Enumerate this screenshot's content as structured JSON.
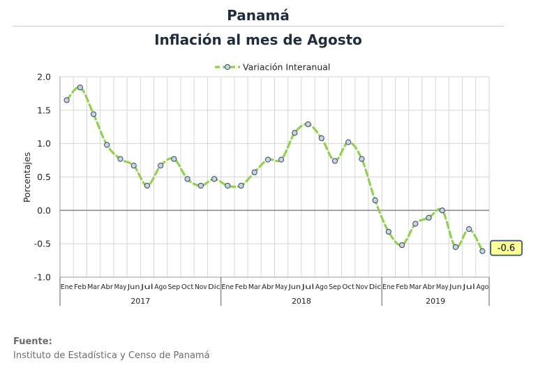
{
  "header": {
    "country": "Panamá",
    "title": "Inflación al mes de Agosto"
  },
  "chart_data": {
    "type": "line",
    "ylabel": "Porcentajes",
    "ylim": [
      -1.0,
      2.0
    ],
    "yticks": [
      "2.0",
      "1.5",
      "1.0",
      "0.5",
      "0.0",
      "-0.5",
      "-1.0"
    ],
    "ytick_values": [
      2.0,
      1.5,
      1.0,
      0.5,
      0.0,
      -0.5,
      -1.0
    ],
    "grid": true,
    "legend_position": "top-center",
    "series": [
      {
        "name": "Variación Interanual",
        "color": "#92d050",
        "marker_fill": "#c5d3e2",
        "values": [
          1.65,
          1.84,
          1.44,
          0.98,
          0.77,
          0.67,
          0.37,
          0.67,
          0.77,
          0.47,
          0.37,
          0.47,
          0.37,
          0.37,
          0.57,
          0.76,
          0.76,
          1.16,
          1.29,
          1.08,
          0.74,
          1.02,
          0.77,
          0.15,
          -0.32,
          -0.52,
          -0.2,
          -0.11,
          0.0,
          -0.55,
          -0.28,
          -0.61
        ]
      }
    ],
    "months": [
      "Ene",
      "Feb",
      "Mar",
      "Abr",
      "May",
      "Jun",
      "Jul",
      "Ago",
      "Sep",
      "Oct",
      "Nov",
      "Dic",
      "Ene",
      "Feb",
      "Mar",
      "Abr",
      "May",
      "Jun",
      "Jul",
      "Ago",
      "Sep",
      "Oct",
      "Nov",
      "Dic",
      "Ene",
      "Feb",
      "Mar",
      "Abr",
      "May",
      "Jun",
      "Jul",
      "Ago"
    ],
    "years": [
      {
        "label": "2017",
        "count": 12
      },
      {
        "label": "2018",
        "count": 12
      },
      {
        "label": "2019",
        "count": 8
      }
    ],
    "annotation": {
      "label": "-0.6",
      "value": -0.61,
      "fill": "#ffff99",
      "border": "#3a5a78"
    }
  },
  "footer": {
    "source_label": "Fuente:",
    "source_text": "Instituto de Estadística y Censo de Panamá"
  }
}
